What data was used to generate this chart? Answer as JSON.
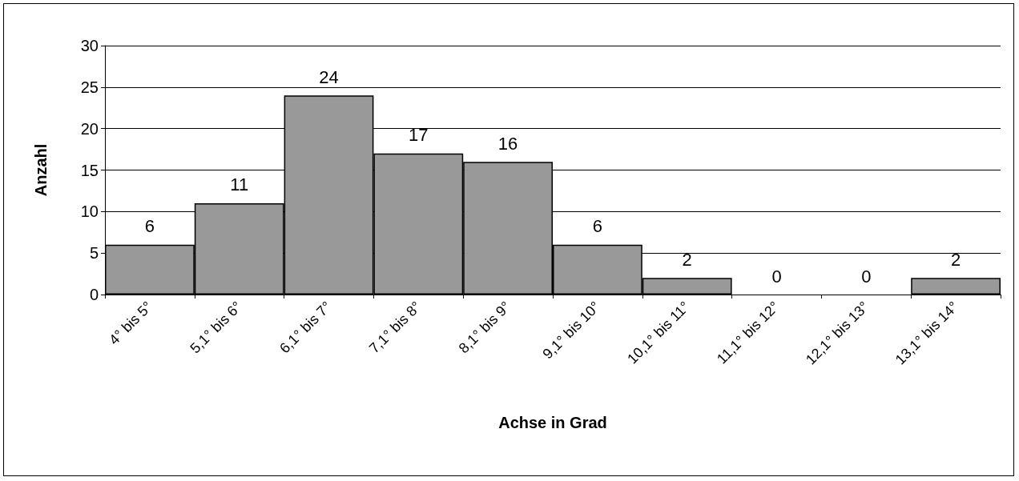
{
  "chart_data": {
    "type": "bar",
    "xlabel": "Achse in Grad",
    "ylabel": "Anzahl",
    "categories": [
      "4° bis 5°",
      "5,1° bis 6°",
      "6,1° bis 7°",
      "7,1° bis 8°",
      "8,1° bis 9°",
      "9,1° bis 10°",
      "10,1° bis 11°",
      "11,1° bis 12°",
      "12,1° bis 13°",
      "13,1° bis 14°"
    ],
    "values": [
      6,
      11,
      24,
      17,
      16,
      6,
      2,
      0,
      0,
      2
    ],
    "color": "#999999",
    "ylim": [
      0,
      30
    ],
    "yticks": [
      0,
      5,
      10,
      15,
      20,
      25,
      30
    ],
    "grid": "y",
    "data_labels": true
  }
}
